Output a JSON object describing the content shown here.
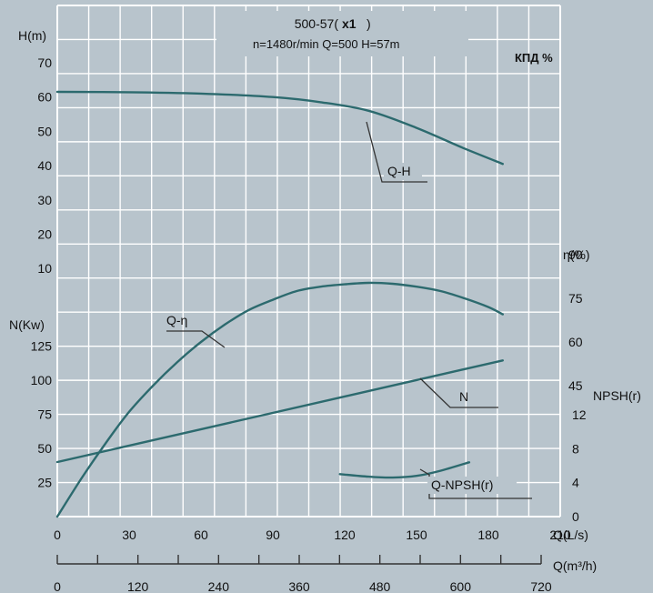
{
  "header": {
    "model_prefix": "500-57(",
    "model_bold": "x1",
    "model_suffix": ")",
    "specs": "n=1480r/min Q=500   H=57m",
    "kpd_label": "КПД %"
  },
  "colors": {
    "background": "#b8c4cc",
    "grid": "#ffffff",
    "curve": "#2c6a6e",
    "axis_line": "#333333",
    "text": "#111111"
  },
  "chart_data": {
    "type": "line",
    "x_axis": {
      "label": "Q(L/s)",
      "range": [
        0,
        210
      ],
      "ticks": [
        "0",
        "30",
        "60",
        "90",
        "120",
        "150",
        "180",
        "210"
      ]
    },
    "x2_axis": {
      "label": "Q(m³/h)",
      "range": [
        0,
        756
      ],
      "ticks": [
        "0",
        "120",
        "240",
        "360",
        "480",
        "600",
        "720"
      ]
    },
    "y_head": {
      "label": "H(m)",
      "ticks": [
        "70",
        "60",
        "50",
        "40",
        "30",
        "20",
        "10"
      ]
    },
    "y_power": {
      "label": "N(Kw)",
      "ticks": [
        "125",
        "100",
        "75",
        "50",
        "25"
      ]
    },
    "y_efficiency": {
      "label": "η(%)",
      "ticks": [
        "90",
        "75",
        "60",
        "45"
      ]
    },
    "y_npsh": {
      "label": "NPSH(r)",
      "ticks": [
        "12",
        "8",
        "4",
        "0"
      ]
    },
    "series": [
      {
        "name": "Q-H",
        "axis": "head",
        "points": [
          [
            0,
            61.5
          ],
          [
            30,
            61.4
          ],
          [
            60,
            61
          ],
          [
            90,
            60
          ],
          [
            110,
            58.5
          ],
          [
            130,
            56
          ],
          [
            150,
            51
          ],
          [
            170,
            45
          ],
          [
            186,
            40.5
          ]
        ]
      },
      {
        "name": "Q-η",
        "axis": "efficiency",
        "points": [
          [
            0,
            0
          ],
          [
            10,
            13
          ],
          [
            20,
            25
          ],
          [
            30,
            36
          ],
          [
            40,
            45
          ],
          [
            50,
            53
          ],
          [
            60,
            60
          ],
          [
            70,
            66
          ],
          [
            80,
            71
          ],
          [
            90,
            74.5
          ],
          [
            100,
            77.5
          ],
          [
            110,
            79
          ],
          [
            120,
            79.8
          ],
          [
            130,
            80.3
          ],
          [
            140,
            80
          ],
          [
            150,
            79
          ],
          [
            160,
            77.5
          ],
          [
            170,
            75
          ],
          [
            180,
            72
          ],
          [
            186,
            69.5
          ]
        ]
      },
      {
        "name": "N",
        "axis": "power",
        "points": [
          [
            0,
            40
          ],
          [
            186,
            114.5
          ]
        ]
      },
      {
        "name": "Q-NPSH(r)",
        "axis": "npsh",
        "points": [
          [
            118,
            5
          ],
          [
            130,
            4.7
          ],
          [
            140,
            4.6
          ],
          [
            150,
            4.8
          ],
          [
            160,
            5.4
          ],
          [
            172,
            6.4
          ]
        ]
      }
    ]
  }
}
